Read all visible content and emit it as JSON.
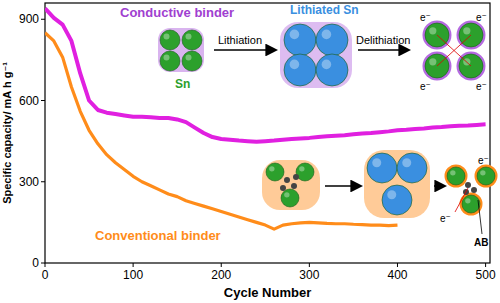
{
  "chart_data": {
    "type": "line",
    "x_label": "Cycle Number",
    "y_label": "Specific capacity/ mA h g⁻¹",
    "xlim": [
      0,
      505
    ],
    "ylim": [
      0,
      960
    ],
    "xticks": [
      0,
      100,
      200,
      300,
      400,
      500
    ],
    "yticks": [
      0,
      300,
      600,
      900
    ],
    "grid": false,
    "series": [
      {
        "name": "Conductive binder",
        "color": "#e020e0",
        "x": [
          0,
          10,
          20,
          30,
          40,
          50,
          60,
          70,
          80,
          90,
          100,
          110,
          120,
          130,
          140,
          150,
          160,
          170,
          180,
          190,
          200,
          210,
          220,
          230,
          240,
          250,
          260,
          270,
          280,
          290,
          300,
          310,
          320,
          330,
          340,
          350,
          360,
          370,
          380,
          390,
          400,
          410,
          420,
          430,
          440,
          450,
          460,
          470,
          480,
          490,
          500
        ],
        "values": [
          940,
          905,
          880,
          820,
          700,
          600,
          565,
          555,
          550,
          545,
          540,
          540,
          538,
          535,
          535,
          530,
          520,
          500,
          480,
          465,
          458,
          455,
          452,
          450,
          448,
          450,
          452,
          455,
          458,
          460,
          462,
          465,
          468,
          470,
          472,
          475,
          478,
          480,
          483,
          486,
          490,
          492,
          495,
          497,
          500,
          502,
          505,
          507,
          508,
          510,
          512
        ]
      },
      {
        "name": "Conventional binder",
        "color": "#ff8c1a",
        "x": [
          0,
          10,
          20,
          30,
          40,
          50,
          60,
          70,
          80,
          90,
          100,
          110,
          120,
          130,
          140,
          150,
          160,
          170,
          180,
          190,
          200,
          210,
          220,
          230,
          240,
          250,
          260,
          270,
          280,
          290,
          300,
          310,
          320,
          330,
          340,
          350,
          360,
          370,
          380,
          390,
          400
        ],
        "values": [
          850,
          820,
          760,
          650,
          560,
          490,
          440,
          400,
          370,
          345,
          320,
          300,
          285,
          270,
          255,
          245,
          230,
          220,
          210,
          200,
          190,
          180,
          170,
          160,
          150,
          140,
          125,
          140,
          145,
          148,
          150,
          148,
          146,
          145,
          145,
          143,
          142,
          140,
          140,
          138,
          140
        ]
      }
    ],
    "annotations": [
      "Lithiated Sn",
      "Sn",
      "Lithiation",
      "Delithiation",
      "e⁻",
      "e⁻",
      "e⁻",
      "e⁻",
      "e⁻",
      "e⁻",
      "AB"
    ]
  }
}
